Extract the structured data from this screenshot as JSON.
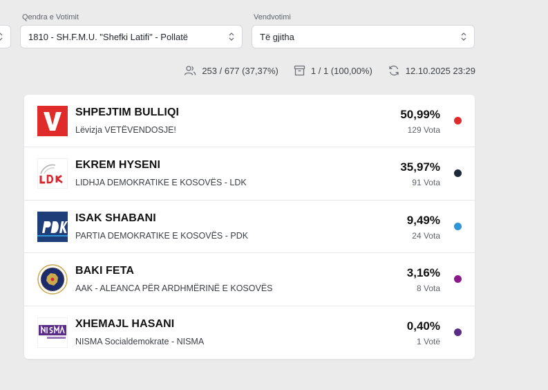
{
  "filters": {
    "polling_center": {
      "label": "Qendra e Votimit",
      "value": "1810 - SH.F.M.U. \"Shefki Latifi\" - Pollatë"
    },
    "polling_station": {
      "label": "Vendvotimi",
      "value": "Të gjitha"
    }
  },
  "stats": {
    "turnout": "253 / 677 (37,37%)",
    "stations_counted": "1 / 1 (100,00%)",
    "updated": "12.10.2025 23:29"
  },
  "results": [
    {
      "candidate": "SHPEJTIM BULLIQI",
      "party": "Lëvizja VETËVENDOSJE!",
      "percent": "50,99%",
      "votes": "129 Vota",
      "color": "#e02b2b",
      "logo": "vetevendosje-logo"
    },
    {
      "candidate": "EKREM HYSENI",
      "party": "LIDHJA DEMOKRATIKE E KOSOVËS - LDK",
      "percent": "35,97%",
      "votes": "91 Vota",
      "color": "#1e2a3a",
      "logo": "ldk-logo"
    },
    {
      "candidate": "ISAK SHABANI",
      "party": "PARTIA DEMOKRATIKE E KOSOVËS - PDK",
      "percent": "9,49%",
      "votes": "24 Vota",
      "color": "#2f96d8",
      "logo": "pdk-logo"
    },
    {
      "candidate": "BAKI FETA",
      "party": "AAK - ALEANCA PËR ARDHMËRINË E KOSOVËS",
      "percent": "3,16%",
      "votes": "8 Vota",
      "color": "#8a1a8c",
      "logo": "aak-logo"
    },
    {
      "candidate": "XHEMAJL HASANI",
      "party": "NISMA Socialdemokrate - NISMA",
      "percent": "0,40%",
      "votes": "1 Votë",
      "color": "#5b2d86",
      "logo": "nisma-logo"
    }
  ]
}
